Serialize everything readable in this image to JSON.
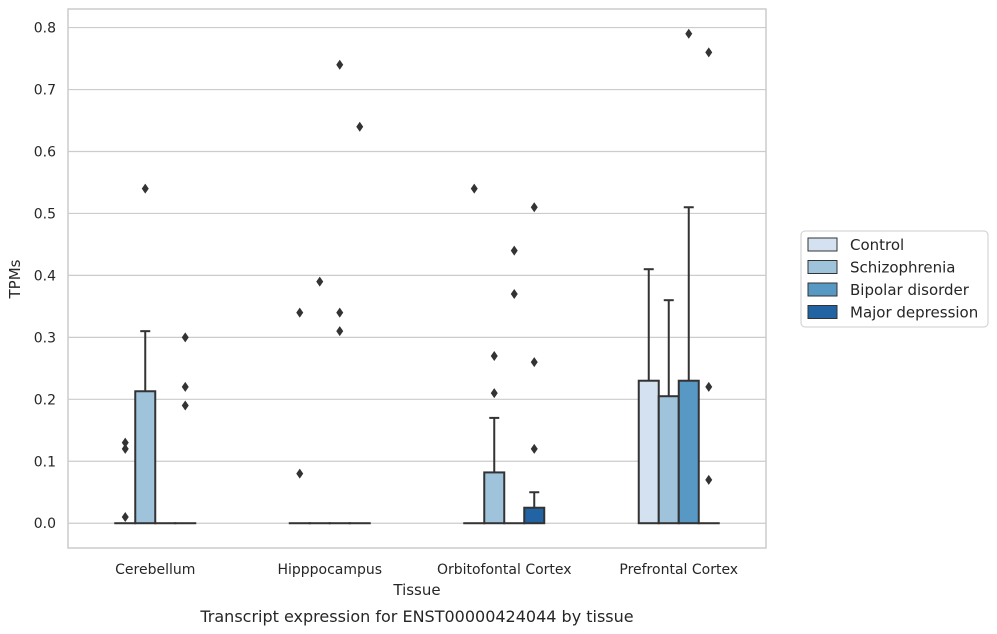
{
  "chart_data": {
    "type": "bar",
    "title": "",
    "caption": "Transcript expression for ENST00000424044 by tissue",
    "xlabel": "Tissue",
    "ylabel": "TPMs",
    "ylim": [
      -0.04,
      0.83
    ],
    "yticks": [
      "0.0",
      "0.1",
      "0.2",
      "0.3",
      "0.4",
      "0.5",
      "0.6",
      "0.7",
      "0.8"
    ],
    "grid": true,
    "legend_position": "right",
    "categories": [
      "Cerebellum",
      "Hipppocampus",
      "Orbitofontal Cortex",
      "Prefrontal Cortex"
    ],
    "series": [
      {
        "name": "Control",
        "color": "#d3e1f0",
        "values": [
          0.0,
          0.0,
          0.0,
          0.23
        ],
        "err": [
          null,
          null,
          null,
          0.41
        ],
        "outliers": [
          [
            0.13,
            0.12,
            0.01
          ],
          [
            0.34,
            0.08
          ],
          [
            0.54
          ],
          []
        ]
      },
      {
        "name": "Schizophrenia",
        "color": "#9ec3db",
        "values": [
          0.213,
          0.0,
          0.082,
          0.205
        ],
        "err": [
          0.31,
          null,
          0.17,
          0.36
        ],
        "outliers": [
          [
            0.54
          ],
          [
            0.39
          ],
          [
            0.27,
            0.21
          ],
          []
        ]
      },
      {
        "name": "Bipolar disorder",
        "color": "#5798c5",
        "values": [
          0.0,
          0.0,
          0.0,
          0.23
        ],
        "err": [
          null,
          null,
          null,
          0.51
        ],
        "outliers": [
          [],
          [
            0.74,
            0.34,
            0.31
          ],
          [
            0.44,
            0.37
          ],
          [
            0.79
          ]
        ]
      },
      {
        "name": "Major depression",
        "color": "#2163a3",
        "values": [
          0.0,
          0.0,
          0.025,
          0.0
        ],
        "err": [
          null,
          null,
          0.05,
          null
        ],
        "outliers": [
          [
            0.3,
            0.22,
            0.19
          ],
          [
            0.64
          ],
          [
            0.51,
            0.26,
            0.12
          ],
          [
            0.76,
            0.22,
            0.07
          ]
        ]
      }
    ]
  }
}
